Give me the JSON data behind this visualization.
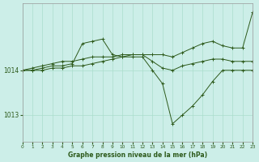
{
  "background_color": "#cceee8",
  "grid_color": "#aaddcc",
  "line_color": "#2d5a1b",
  "xlabel": "Graphe pression niveau de la mer (hPa)",
  "ylim": [
    1012.4,
    1015.5
  ],
  "xlim": [
    0,
    23
  ],
  "yticks": [
    1013,
    1014
  ],
  "xticks": [
    0,
    1,
    2,
    3,
    4,
    5,
    6,
    7,
    8,
    9,
    10,
    11,
    12,
    13,
    14,
    15,
    16,
    17,
    18,
    19,
    20,
    21,
    22,
    23
  ],
  "series": [
    {
      "x": [
        0,
        1,
        2,
        3,
        4,
        5,
        6,
        7,
        8,
        9,
        10,
        11,
        12,
        13,
        14,
        15,
        16,
        17,
        18,
        19,
        20,
        21,
        22,
        23
      ],
      "y": [
        1014.0,
        1014.05,
        1014.1,
        1014.15,
        1014.2,
        1014.2,
        1014.25,
        1014.3,
        1014.3,
        1014.3,
        1014.35,
        1014.35,
        1014.35,
        1014.35,
        1014.35,
        1014.3,
        1014.4,
        1014.5,
        1014.6,
        1014.65,
        1014.55,
        1014.5,
        1014.5,
        1015.3
      ]
    },
    {
      "x": [
        0,
        1,
        2,
        3,
        4,
        5,
        6,
        7,
        8,
        9,
        10,
        11,
        12,
        13,
        14,
        15,
        16,
        17,
        18,
        19,
        20,
        21,
        22,
        23
      ],
      "y": [
        1014.0,
        1014.0,
        1014.05,
        1014.1,
        1014.1,
        1014.15,
        1014.6,
        1014.65,
        1014.7,
        1014.35,
        1014.3,
        1014.35,
        1014.35,
        1014.2,
        1014.05,
        1014.0,
        1014.1,
        1014.15,
        1014.2,
        1014.25,
        1014.25,
        1014.2,
        1014.2,
        1014.2
      ]
    },
    {
      "x": [
        0,
        1,
        2,
        3,
        4,
        5,
        6,
        7,
        8,
        9,
        10,
        11,
        12,
        13,
        14,
        15,
        16,
        17,
        18,
        19,
        20,
        21,
        22,
        23
      ],
      "y": [
        1014.0,
        1014.0,
        1014.0,
        1014.05,
        1014.05,
        1014.1,
        1014.1,
        1014.15,
        1014.2,
        1014.25,
        1014.3,
        1014.3,
        1014.3,
        1014.0,
        1013.7,
        1012.8,
        1013.0,
        1013.2,
        1013.45,
        1013.75,
        1014.0,
        1014.0,
        1014.0,
        1014.0
      ]
    }
  ]
}
